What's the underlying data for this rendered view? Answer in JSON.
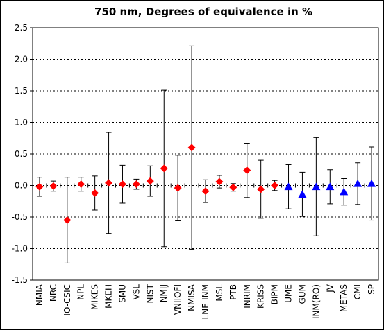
{
  "chart_data": {
    "type": "scatter",
    "title": "750 nm, Degrees of equivalence in %",
    "xlabel": "",
    "ylabel": "",
    "ylim": [
      -1.5,
      2.5
    ],
    "yticks": [
      "2.5",
      "2.0",
      "1.5",
      "1.0",
      "0.5",
      "0.0",
      "-0.5",
      "-1.0",
      "-1.5"
    ],
    "grid": "horizontal-dashed",
    "categories": [
      "NMIA",
      "NRC",
      "IO-CSIC",
      "NPL",
      "MIKES",
      "MKEH",
      "SMU",
      "VSL",
      "NIST",
      "NMIJ",
      "VNIIOFI",
      "NMISA",
      "LNE-INM",
      "MSL",
      "PTB",
      "INRIM",
      "KRISS",
      "BIPM",
      "UME",
      "GUM",
      "INM(RO)",
      "JV",
      "METAS",
      "CMI",
      "SP"
    ],
    "values": [
      -0.02,
      -0.01,
      -0.55,
      0.02,
      -0.12,
      0.04,
      0.02,
      0.02,
      0.07,
      0.27,
      -0.04,
      0.6,
      -0.09,
      0.06,
      -0.03,
      0.24,
      -0.06,
      0.0,
      -0.02,
      -0.14,
      -0.02,
      -0.02,
      -0.1,
      0.03,
      0.03
    ],
    "uncertainty": [
      0.15,
      0.08,
      0.68,
      0.11,
      0.27,
      0.8,
      0.3,
      0.08,
      0.24,
      1.24,
      0.52,
      1.61,
      0.18,
      0.1,
      0.06,
      0.43,
      0.46,
      0.08,
      0.35,
      0.35,
      0.78,
      0.27,
      0.21,
      0.33,
      0.58
    ],
    "marker_types": [
      "diamond",
      "diamond",
      "diamond",
      "diamond",
      "diamond",
      "diamond",
      "diamond",
      "diamond",
      "diamond",
      "diamond",
      "diamond",
      "diamond",
      "diamond",
      "diamond",
      "diamond",
      "diamond",
      "diamond",
      "diamond",
      "triangle",
      "triangle",
      "triangle",
      "triangle",
      "triangle",
      "triangle",
      "triangle"
    ],
    "colors": {
      "diamond": "#ff0000",
      "triangle": "#0000ff",
      "errorbar": "#000000",
      "grid": "#000000"
    }
  }
}
